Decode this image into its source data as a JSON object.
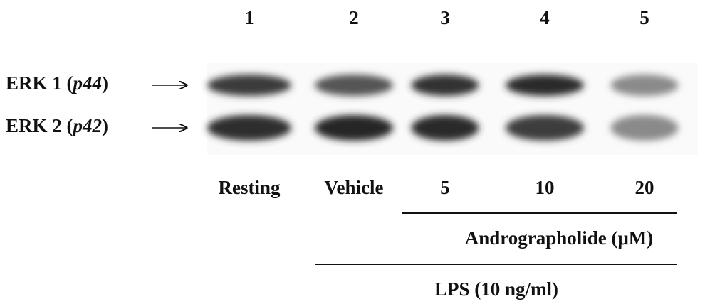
{
  "lanes": [
    {
      "number": "1",
      "condition": "Resting"
    },
    {
      "number": "2",
      "condition": "Vehicle"
    },
    {
      "number": "3",
      "condition": "5"
    },
    {
      "number": "4",
      "condition": "10"
    },
    {
      "number": "5",
      "condition": "20"
    }
  ],
  "rows": [
    {
      "prefix": "ERK 1 (",
      "isoform": "p44",
      "suffix": ")"
    },
    {
      "prefix": "ERK 2 (",
      "isoform": "p42",
      "suffix": ")"
    }
  ],
  "treatment": "Andrographolide (μM)",
  "stimulus": "LPS (10 ng/ml)"
}
